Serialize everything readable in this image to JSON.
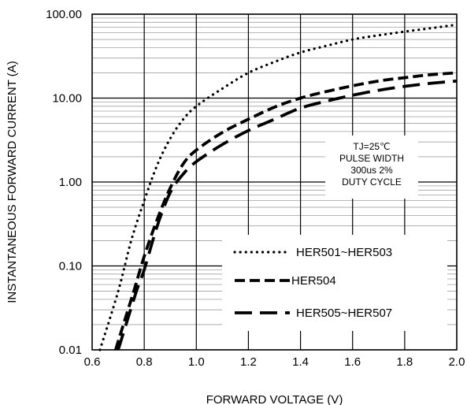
{
  "chart_data": {
    "type": "line",
    "title": "",
    "xlabel": "FORWARD VOLTAGE (V)",
    "ylabel": "INSTANTANEOUS FORWARD CURRENT (A)",
    "xlim": [
      0.6,
      2.0
    ],
    "ylim": [
      0.01,
      100
    ],
    "yscale": "log",
    "grid": true,
    "x_ticks": [
      "0.6",
      "0.8",
      "1.0",
      "1.2",
      "1.4",
      "1.6",
      "1.8",
      "2.0"
    ],
    "y_ticks": [
      "0.01",
      "0.10",
      "1.00",
      "10.00",
      "100.00"
    ],
    "annotation": [
      "TJ=25℃",
      "PULSE WIDTH",
      "300us 2%",
      "DUTY CYCLE"
    ],
    "legend_position": "bottom-right",
    "series": [
      {
        "name": "HER501~HER503",
        "style": "dotted",
        "points": [
          [
            0.63,
            0.01
          ],
          [
            0.7,
            0.05
          ],
          [
            0.75,
            0.2
          ],
          [
            0.8,
            0.6
          ],
          [
            0.85,
            1.6
          ],
          [
            0.9,
            3.3
          ],
          [
            0.95,
            5.6
          ],
          [
            1.0,
            8.0
          ],
          [
            1.1,
            13
          ],
          [
            1.2,
            20
          ],
          [
            1.3,
            27
          ],
          [
            1.4,
            35
          ],
          [
            1.5,
            42
          ],
          [
            1.6,
            50
          ],
          [
            1.7,
            56
          ],
          [
            1.8,
            62
          ],
          [
            1.9,
            68
          ],
          [
            2.0,
            75
          ]
        ]
      },
      {
        "name": "HER504",
        "style": "dashed",
        "points": [
          [
            0.69,
            0.01
          ],
          [
            0.72,
            0.02
          ],
          [
            0.76,
            0.05
          ],
          [
            0.8,
            0.13
          ],
          [
            0.85,
            0.36
          ],
          [
            0.9,
            0.85
          ],
          [
            0.95,
            1.65
          ],
          [
            1.0,
            2.4
          ],
          [
            1.1,
            3.9
          ],
          [
            1.2,
            5.6
          ],
          [
            1.3,
            7.8
          ],
          [
            1.4,
            10
          ],
          [
            1.5,
            12
          ],
          [
            1.6,
            14
          ],
          [
            1.7,
            16
          ],
          [
            1.8,
            17.5
          ],
          [
            1.9,
            19
          ],
          [
            2.0,
            20
          ]
        ]
      },
      {
        "name": "HER505~HER507",
        "style": "long-dashed",
        "points": [
          [
            0.7,
            0.01
          ],
          [
            0.73,
            0.02
          ],
          [
            0.77,
            0.05
          ],
          [
            0.8,
            0.09
          ],
          [
            0.85,
            0.3
          ],
          [
            0.9,
            0.75
          ],
          [
            0.95,
            1.25
          ],
          [
            1.0,
            1.75
          ],
          [
            1.1,
            2.8
          ],
          [
            1.2,
            4.1
          ],
          [
            1.3,
            5.6
          ],
          [
            1.4,
            7.6
          ],
          [
            1.5,
            9.2
          ],
          [
            1.6,
            10.8
          ],
          [
            1.7,
            12.4
          ],
          [
            1.8,
            13.8
          ],
          [
            1.9,
            15
          ],
          [
            2.0,
            16
          ]
        ]
      }
    ]
  }
}
